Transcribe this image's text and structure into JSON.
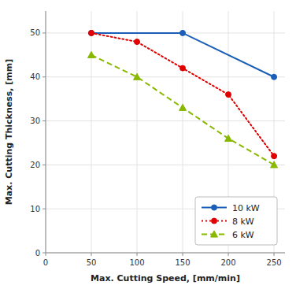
{
  "chart_data": {
    "type": "line",
    "xlabel": "Max. Cutting Speed, [mm/min]",
    "ylabel": "Max. Cutting Thickness, [mm]",
    "xlim": [
      0,
      262
    ],
    "ylim": [
      0,
      55
    ],
    "xticks": [
      0,
      50,
      100,
      150,
      200,
      250
    ],
    "yticks": [
      0,
      10,
      20,
      30,
      40,
      50
    ],
    "grid": true,
    "legend": "lower right",
    "series": [
      {
        "name": "10 kW",
        "x": [
          50,
          150,
          250
        ],
        "values": [
          50,
          50,
          40
        ],
        "color": "#1a5eb8",
        "line_style": "solid",
        "marker": "circle"
      },
      {
        "name": "8 kW",
        "x": [
          50,
          100,
          150,
          200,
          250
        ],
        "values": [
          50,
          48,
          42,
          36,
          22
        ],
        "color": "#e00000",
        "line_style": "dotted",
        "marker": "circle"
      },
      {
        "name": "6 kW",
        "x": [
          50,
          100,
          150,
          200,
          250
        ],
        "values": [
          45,
          40,
          33,
          26,
          20
        ],
        "color": "#88b800",
        "line_style": "dashed",
        "marker": "triangle"
      }
    ]
  }
}
